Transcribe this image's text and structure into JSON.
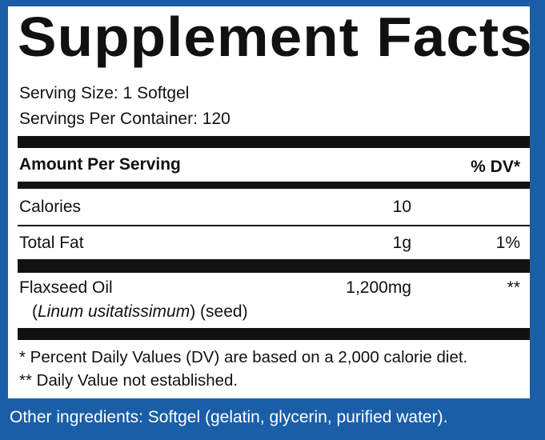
{
  "title": "Supplement Facts",
  "serving_size": "Serving Size: 1 Softgel",
  "servings_per_container": "Servings Per Container: 120",
  "header": {
    "amount": "Amount Per Serving",
    "dv": "% DV*"
  },
  "rows": [
    {
      "name": "Calories",
      "amount": "10",
      "dv": ""
    },
    {
      "name": "Total Fat",
      "amount": "1g",
      "dv": "1%"
    },
    {
      "name": "Flaxseed Oil",
      "amount": "1,200mg",
      "dv": "**"
    }
  ],
  "flax_sub": {
    "open": "(",
    "latin": "Linum usitatissimum",
    "close": ") (seed)"
  },
  "footnotes": [
    "* Percent Daily Values (DV) are based on a 2,000 calorie diet.",
    "** Daily Value not established."
  ],
  "other_ingredients": "Other ingredients: Softgel (gelatin, glycerin, purified water).",
  "colors": {
    "background": "#1a5ea8",
    "label": "#ffffff",
    "ink": "#111111"
  }
}
